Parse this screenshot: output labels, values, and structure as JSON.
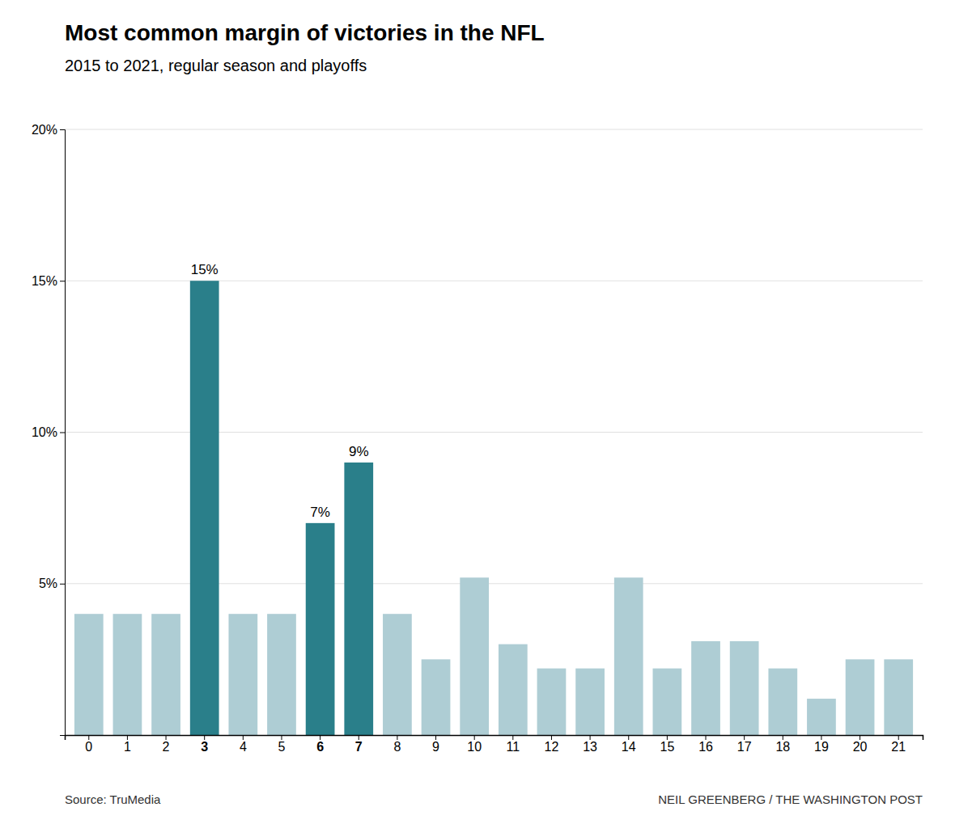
{
  "chart_data": {
    "type": "bar",
    "title": "Most common margin of victories in the NFL",
    "subtitle": "2015 to 2021, regular season and playoffs",
    "annotations": [
      "Source: TruMedia",
      "NEIL GREENBERG / THE WASHINGTON POST"
    ],
    "categories": [
      0,
      1,
      2,
      3,
      4,
      5,
      6,
      7,
      8,
      9,
      10,
      11,
      12,
      13,
      14,
      15,
      16,
      17,
      18,
      19,
      20,
      21
    ],
    "values": [
      4.0,
      4.0,
      4.0,
      15.0,
      4.0,
      4.0,
      7.0,
      9.0,
      4.0,
      2.5,
      5.2,
      3.0,
      2.2,
      2.2,
      5.2,
      2.2,
      3.1,
      3.1,
      2.2,
      1.2,
      2.5,
      2.5
    ],
    "value_labels": [
      null,
      null,
      null,
      "15%",
      null,
      null,
      "7%",
      "9%",
      null,
      null,
      null,
      null,
      null,
      null,
      null,
      null,
      null,
      null,
      null,
      null,
      null,
      null
    ],
    "colors": [
      "#aecdd4",
      "#aecdd4",
      "#aecdd4",
      "#2a7f8a",
      "#aecdd4",
      "#aecdd4",
      "#2a7f8a",
      "#2a7f8a",
      "#aecdd4",
      "#aecdd4",
      "#aecdd4",
      "#aecdd4",
      "#aecdd4",
      "#aecdd4",
      "#aecdd4",
      "#aecdd4",
      "#aecdd4",
      "#aecdd4",
      "#aecdd4",
      "#aecdd4",
      "#aecdd4",
      "#aecdd4"
    ],
    "ylim": [
      0,
      20
    ],
    "yticks": [
      {
        "value": 5,
        "label": "5%"
      },
      {
        "value": 10,
        "label": "10%"
      },
      {
        "value": 15,
        "label": "15%"
      },
      {
        "value": 20,
        "label": "20%"
      }
    ],
    "grid": true
  }
}
